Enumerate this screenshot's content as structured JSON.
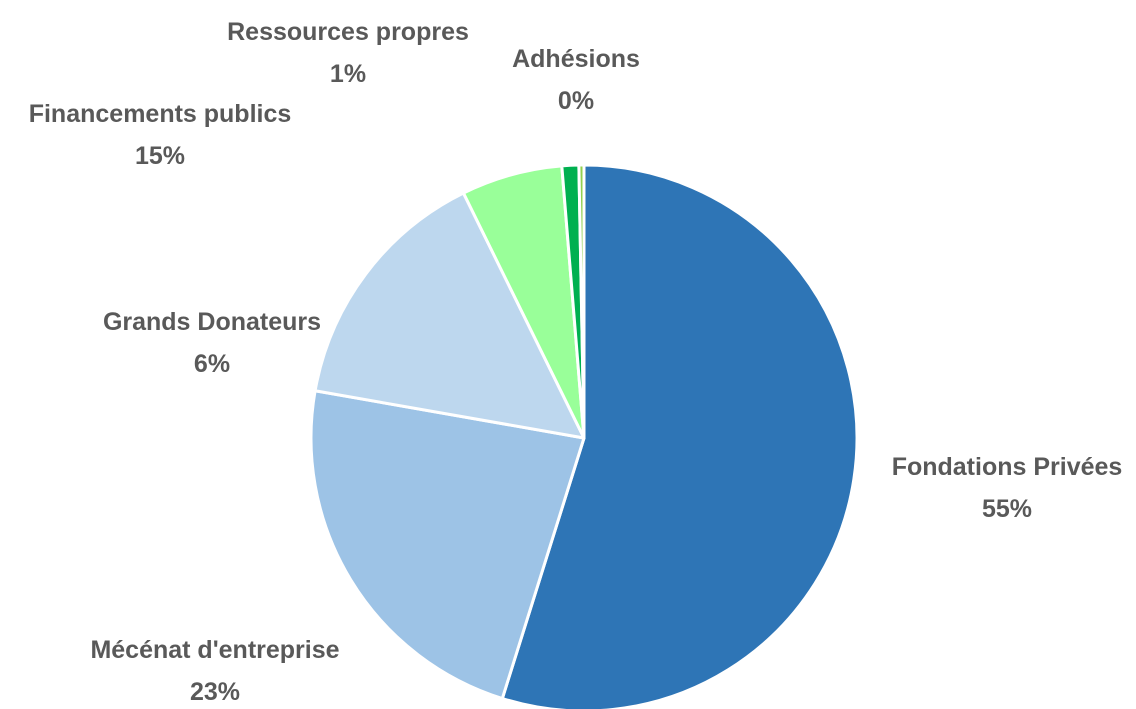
{
  "chart_data": {
    "type": "pie",
    "title": "",
    "start_angle_deg": 0,
    "direction": "clockwise",
    "slices": [
      {
        "category": "Fondations Privées",
        "value": 55,
        "label": "55%",
        "color": "#2E75B6"
      },
      {
        "category": "Mécénat d'entreprise",
        "value": 23,
        "label": "23%",
        "color": "#9DC3E6"
      },
      {
        "category": "Financements publics",
        "value": 15,
        "label": "15%",
        "color": "#BDD7EE"
      },
      {
        "category": "Grands Donateurs",
        "value": 6,
        "label": "6%",
        "color": "#99FF99"
      },
      {
        "category": "Ressources propres",
        "value": 1,
        "label": "1%",
        "color": "#00B050"
      },
      {
        "category": "Adhésions",
        "value": 0.3,
        "label": "0%",
        "color": "#92D050"
      }
    ]
  }
}
